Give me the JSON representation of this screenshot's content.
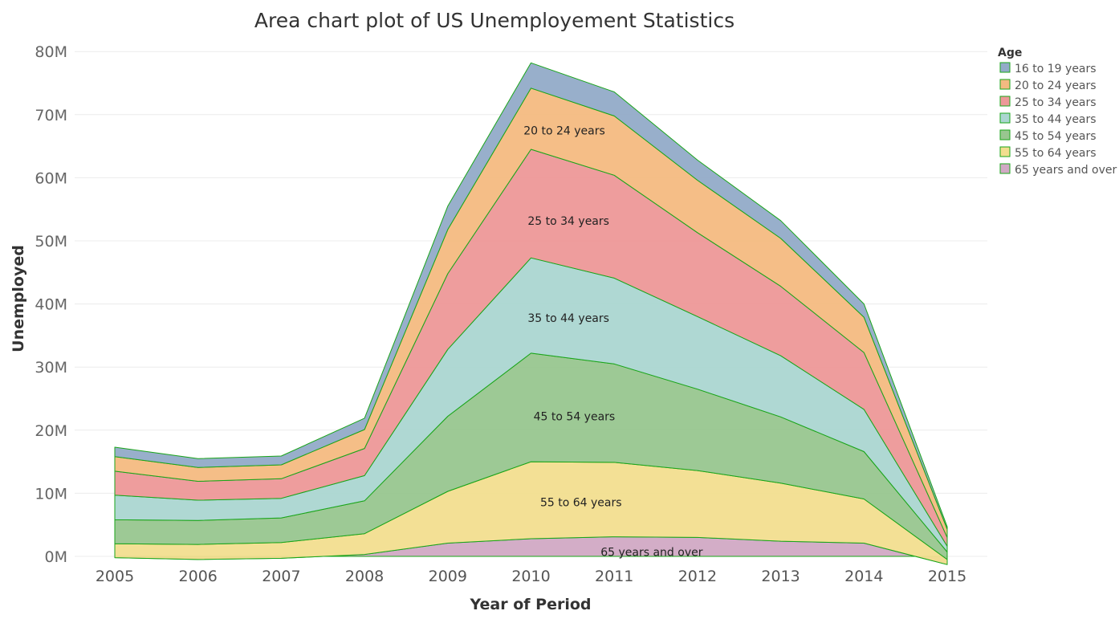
{
  "chart_data": {
    "type": "area",
    "stacked": true,
    "title": "Area chart plot of US Unemployement Statistics",
    "xlabel": "Year of Period",
    "ylabel": "Unemployed",
    "x": [
      2005,
      2006,
      2007,
      2008,
      2009,
      2010,
      2011,
      2012,
      2013,
      2014,
      2015
    ],
    "ylim": [
      -1.5,
      80
    ],
    "yticks": [
      0,
      10,
      20,
      30,
      40,
      50,
      60,
      70,
      80
    ],
    "ytick_labels": [
      "0M",
      "10M",
      "20M",
      "30M",
      "40M",
      "50M",
      "60M",
      "70M",
      "80M"
    ],
    "grid": "horizontal",
    "legend": {
      "title": "Age",
      "position": "right"
    },
    "series_outline_color": "#1aa51a",
    "series": [
      {
        "name": "65 years and over",
        "color": "#d1a9c4",
        "values": [
          -0.2,
          -0.5,
          -0.3,
          0.3,
          2.1,
          2.8,
          3.1,
          3.0,
          2.4,
          2.1,
          -1.3
        ]
      },
      {
        "name": "55 to 64 years",
        "color": "#f2de8f",
        "values": [
          2.2,
          2.4,
          2.5,
          3.3,
          8.2,
          12.2,
          11.8,
          10.6,
          9.2,
          7.0,
          0.8
        ]
      },
      {
        "name": "45 to 54 years",
        "color": "#98c68f",
        "values": [
          3.8,
          3.8,
          3.9,
          5.2,
          11.9,
          17.2,
          15.6,
          12.9,
          10.5,
          7.5,
          1.2
        ]
      },
      {
        "name": "35 to 44 years",
        "color": "#abd6d1",
        "values": [
          3.9,
          3.2,
          3.1,
          4.0,
          10.6,
          15.1,
          13.6,
          11.5,
          9.7,
          6.7,
          0.9
        ]
      },
      {
        "name": "25 to 34 years",
        "color": "#ed9898",
        "values": [
          3.8,
          3.0,
          3.1,
          4.3,
          12.0,
          17.2,
          16.3,
          13.3,
          11.0,
          9.0,
          1.4
        ]
      },
      {
        "name": "20 to 24 years",
        "color": "#f4ba81",
        "values": [
          2.3,
          2.2,
          2.2,
          3.0,
          7.0,
          9.7,
          9.4,
          8.3,
          7.6,
          5.6,
          1.3
        ]
      },
      {
        "name": "16 to 19 years",
        "color": "#92abc8",
        "values": [
          1.5,
          1.4,
          1.4,
          1.8,
          3.7,
          4.0,
          3.8,
          3.2,
          2.8,
          2.1,
          0.4
        ]
      }
    ],
    "legend_order": [
      "16 to 19 years",
      "20 to 24 years",
      "25 to 34 years",
      "35 to 44 years",
      "45 to 54 years",
      "55 to 64 years",
      "65 years and over"
    ],
    "annotations": [
      {
        "series": "20 to 24 years",
        "text": "20 to 24 years",
        "x": 2010.4,
        "y": 67.5
      },
      {
        "series": "25 to 34 years",
        "text": "25 to 34 years",
        "x": 2010.45,
        "y": 53.2
      },
      {
        "series": "35 to 44 years",
        "text": "35 to 44 years",
        "x": 2010.45,
        "y": 37.8
      },
      {
        "series": "45 to 54 years",
        "text": "45 to 54 years",
        "x": 2010.52,
        "y": 22.2
      },
      {
        "series": "55 to 64 years",
        "text": "55 to 64 years",
        "x": 2010.6,
        "y": 8.6
      },
      {
        "series": "65 years and over",
        "text": "65 years and over",
        "x": 2011.45,
        "y": 0.7
      }
    ]
  }
}
